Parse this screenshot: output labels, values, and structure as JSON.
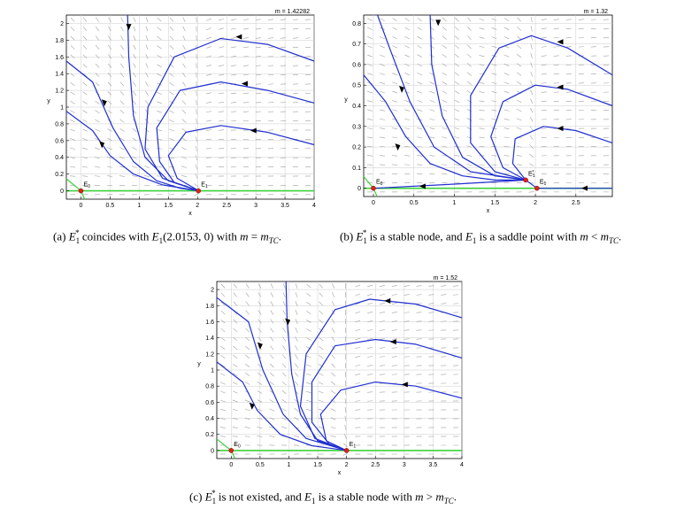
{
  "figure": {
    "colors": {
      "trajectory": "#1f2fd0",
      "axis_manifold": "#3cd23c",
      "equilibrium": "#e0201c",
      "vector_field": "#a0a0a0",
      "grid": "#cccccc",
      "arrowhead": "#000000"
    },
    "panels": [
      {
        "id": "a",
        "title": "m = 1.42282",
        "xlabel": "x",
        "ylabel": "y",
        "xlim": [
          -0.25,
          4.0
        ],
        "ylim": [
          -0.1,
          2.1
        ],
        "xticks": [
          {
            "v": 0,
            "t": "0"
          },
          {
            "v": 0.5,
            "t": "0.5"
          },
          {
            "v": 1,
            "t": "1"
          },
          {
            "v": 1.5,
            "t": "1.5"
          },
          {
            "v": 2,
            "t": "2"
          },
          {
            "v": 2.5,
            "t": "2.5"
          },
          {
            "v": 3,
            "t": "3"
          },
          {
            "v": 3.5,
            "t": "3.5"
          },
          {
            "v": 4,
            "t": "4"
          }
        ],
        "yticks": [
          {
            "v": 0,
            "t": "0"
          },
          {
            "v": 0.2,
            "t": "0.2"
          },
          {
            "v": 0.4,
            "t": "0.4"
          },
          {
            "v": 0.6,
            "t": "0.6"
          },
          {
            "v": 0.8,
            "t": "0.8"
          },
          {
            "v": 1,
            "t": "1"
          },
          {
            "v": 1.2,
            "t": "1.2"
          },
          {
            "v": 1.4,
            "t": "1.4"
          },
          {
            "v": 1.6,
            "t": "1.6"
          },
          {
            "v": 1.8,
            "t": "1.8"
          },
          {
            "v": 2,
            "t": "2"
          }
        ],
        "points": [
          {
            "label": "E0",
            "x": 0,
            "y": 0
          },
          {
            "label": "E1",
            "x": 2.0153,
            "y": 0
          }
        ],
        "caption": {
          "prefix": "(a) ",
          "text1": " coincides with ",
          "text2": "(2.0153, 0) with ",
          "text3": "."
        }
      },
      {
        "id": "b",
        "title": "m = 1.32",
        "xlabel": "x",
        "ylabel": "y",
        "xlim": [
          -0.12,
          2.95
        ],
        "ylim": [
          -0.04,
          0.84
        ],
        "xticks": [
          {
            "v": 0,
            "t": "0"
          },
          {
            "v": 0.5,
            "t": "0.5"
          },
          {
            "v": 1,
            "t": "1"
          },
          {
            "v": 1.5,
            "t": "1.5"
          },
          {
            "v": 2,
            "t": "2"
          },
          {
            "v": 2.5,
            "t": "2.5"
          }
        ],
        "yticks": [
          {
            "v": 0,
            "t": "0"
          },
          {
            "v": 0.1,
            "t": "0.1"
          },
          {
            "v": 0.2,
            "t": "0.2"
          },
          {
            "v": 0.3,
            "t": "0.3"
          },
          {
            "v": 0.4,
            "t": "0.4"
          },
          {
            "v": 0.5,
            "t": "0.5"
          },
          {
            "v": 0.6,
            "t": "0.6"
          },
          {
            "v": 0.7,
            "t": "0.7"
          },
          {
            "v": 0.8,
            "t": "0.8"
          }
        ],
        "points": [
          {
            "label": "E0",
            "x": 0,
            "y": 0
          },
          {
            "label": "E1*",
            "x": 1.88,
            "y": 0.04
          },
          {
            "label": "E1",
            "x": 2.02,
            "y": 0
          }
        ],
        "caption": {
          "prefix": "(b) ",
          "text1": " is a stable node, and ",
          "text2": " is a saddle point with ",
          "text3": "."
        }
      },
      {
        "id": "c",
        "title": "m = 1.52",
        "xlabel": "x",
        "ylabel": "y",
        "xlim": [
          -0.25,
          4.0
        ],
        "ylim": [
          -0.1,
          2.1
        ],
        "xticks": [
          {
            "v": 0,
            "t": "0"
          },
          {
            "v": 0.5,
            "t": "0.5"
          },
          {
            "v": 1,
            "t": "1"
          },
          {
            "v": 1.5,
            "t": "1.5"
          },
          {
            "v": 2,
            "t": "2"
          },
          {
            "v": 2.5,
            "t": "2.5"
          },
          {
            "v": 3,
            "t": "3"
          },
          {
            "v": 3.5,
            "t": "3.5"
          },
          {
            "v": 4,
            "t": "4"
          }
        ],
        "yticks": [
          {
            "v": 0,
            "t": "0"
          },
          {
            "v": 0.2,
            "t": "0.2"
          },
          {
            "v": 0.4,
            "t": "0.4"
          },
          {
            "v": 0.6,
            "t": "0.6"
          },
          {
            "v": 0.8,
            "t": "0.8"
          },
          {
            "v": 1,
            "t": "1"
          },
          {
            "v": 1.2,
            "t": "1.2"
          },
          {
            "v": 1.4,
            "t": "1.4"
          },
          {
            "v": 1.6,
            "t": "1.6"
          },
          {
            "v": 1.8,
            "t": "1.8"
          },
          {
            "v": 2,
            "t": "2"
          }
        ],
        "points": [
          {
            "label": "E0",
            "x": 0,
            "y": 0
          },
          {
            "label": "E1",
            "x": 2.0,
            "y": 0
          }
        ],
        "caption": {
          "prefix": "(c) ",
          "text1": " is not existed, and ",
          "text2": " is a stable node with ",
          "text3": "."
        }
      }
    ]
  }
}
